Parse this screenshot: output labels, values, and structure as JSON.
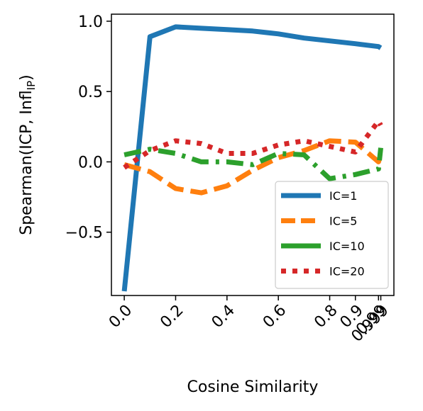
{
  "chart_data": {
    "type": "line",
    "xlabel": "Cosine Similarity",
    "ylabel_main": "Spearman(ICP, Infl",
    "ylabel_sub": "IP",
    "ylabel_close": ")",
    "categories": [
      "0.0",
      "0.2",
      "0.4",
      "0.6",
      "0.8",
      "0.9",
      "0.99",
      "0.999"
    ],
    "x": [
      0.0,
      0.1,
      0.2,
      0.3,
      0.4,
      0.5,
      0.6,
      0.7,
      0.8,
      0.9,
      0.99,
      0.999
    ],
    "y_ticks": [
      "1.0",
      "0.5",
      "0.0",
      "−0.5"
    ],
    "y_tick_values": [
      1.0,
      0.5,
      0.0,
      -0.5
    ],
    "ylim": [
      -0.95,
      1.05
    ],
    "xlim": [
      -0.05,
      1.05
    ],
    "grid": false,
    "legend_position": "lower-right",
    "series": [
      {
        "name": "IC=1",
        "color": "#1f77b4",
        "style": "solid",
        "values": [
          -0.92,
          0.89,
          0.96,
          0.95,
          0.94,
          0.93,
          0.91,
          0.88,
          0.86,
          0.84,
          0.82,
          0.81
        ]
      },
      {
        "name": "IC=5",
        "color": "#ff7f0e",
        "style": "dashed",
        "values": [
          -0.02,
          -0.07,
          -0.19,
          -0.22,
          -0.17,
          -0.06,
          0.03,
          0.08,
          0.15,
          0.14,
          0.0,
          0.05
        ]
      },
      {
        "name": "IC=10",
        "color": "#2ca02c",
        "style": "dashdot",
        "values": [
          0.05,
          0.09,
          0.06,
          0.0,
          0.0,
          -0.02,
          0.06,
          0.05,
          -0.12,
          -0.09,
          -0.05,
          0.1
        ]
      },
      {
        "name": "IC=20",
        "color": "#d62728",
        "style": "dotted",
        "values": [
          -0.04,
          0.08,
          0.15,
          0.13,
          0.06,
          0.06,
          0.12,
          0.15,
          0.11,
          0.07,
          0.29,
          0.26
        ]
      }
    ]
  }
}
